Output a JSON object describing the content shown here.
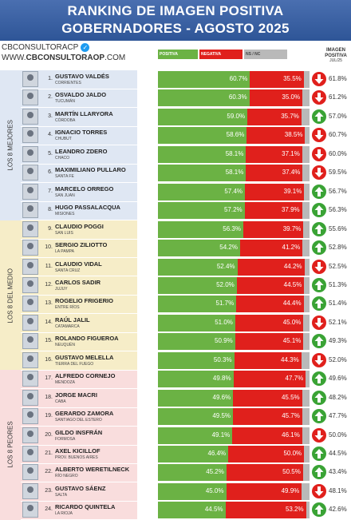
{
  "header": {
    "line1": "RANKING DE IMAGEN POSITIVA",
    "line2": "GOBERNADORES - AGOSTO 2025"
  },
  "brand": {
    "handle": "CBCONSULTORACP",
    "check_icon": "verified-check-icon",
    "web_prefix": "WWW.",
    "web_main": "CBCONSULTORAOP",
    "web_suffix": ".COM"
  },
  "legend": {
    "positive": "POSITIVA",
    "negative": "NEGATIVA",
    "ns": "NS / NC"
  },
  "column_title": {
    "line1": "IMAGEN",
    "line2": "POSITIVA",
    "line3": "JUL/25"
  },
  "colors": {
    "positive": "#6bb244",
    "negative": "#e0201c",
    "ns": "#b9b9b9",
    "up": "#3aa335",
    "down": "#e0201c",
    "band_top": "#dfe7f3",
    "band_mid": "#f6edc8",
    "band_bot": "#f9dddd"
  },
  "groups": [
    {
      "label": "LOS 8 MEJORES",
      "color": "#dfe7f3"
    },
    {
      "label": "LOS 8 DEL MEDIO",
      "color": "#f6edc8"
    },
    {
      "label": "LOS 8 PEORES",
      "color": "#f9dddd"
    }
  ],
  "chart_data": {
    "type": "bar",
    "stacked": true,
    "series_names": [
      "POSITIVA",
      "NEGATIVA",
      "NS / NC"
    ],
    "rows": [
      {
        "rank": "1.",
        "name": "GUSTAVO VALDÉS",
        "province": "CORRIENTES",
        "positive": 60.7,
        "negative": 35.5,
        "positive_label": "60.7%",
        "negative_label": "35.5%",
        "trend": "down",
        "previous": "61.8%"
      },
      {
        "rank": "2.",
        "name": "OSVALDO JALDO",
        "province": "TUCUMÁN",
        "positive": 60.3,
        "negative": 35.0,
        "positive_label": "60.3%",
        "negative_label": "35.0%",
        "trend": "down",
        "previous": "61.2%"
      },
      {
        "rank": "3.",
        "name": "MARTÍN LLARYORA",
        "province": "CÓRDOBA",
        "positive": 59.0,
        "negative": 35.7,
        "positive_label": "59.0%",
        "negative_label": "35.7%",
        "trend": "up",
        "previous": "57.0%"
      },
      {
        "rank": "4.",
        "name": "IGNACIO TORRES",
        "province": "CHUBUT",
        "positive": 58.6,
        "negative": 38.5,
        "positive_label": "58.6%",
        "negative_label": "38.5%",
        "trend": "down",
        "previous": "60.7%"
      },
      {
        "rank": "5.",
        "name": "LEANDRO ZDERO",
        "province": "CHACO",
        "positive": 58.1,
        "negative": 37.1,
        "positive_label": "58.1%",
        "negative_label": "37.1%",
        "trend": "down",
        "previous": "60.0%"
      },
      {
        "rank": "6.",
        "name": "MAXIMILIANO PULLARO",
        "province": "SANTA FE",
        "positive": 58.1,
        "negative": 37.4,
        "positive_label": "58.1%",
        "negative_label": "37.4%",
        "trend": "down",
        "previous": "59.5%"
      },
      {
        "rank": "7.",
        "name": "MARCELO ORREGO",
        "province": "SAN JUAN",
        "positive": 57.4,
        "negative": 39.1,
        "positive_label": "57.4%",
        "negative_label": "39.1%",
        "trend": "up",
        "previous": "56.7%"
      },
      {
        "rank": "8.",
        "name": "HUGO PASSALACQUA",
        "province": "MISIONES",
        "positive": 57.2,
        "negative": 37.9,
        "positive_label": "57.2%",
        "negative_label": "37.9%",
        "trend": "up",
        "previous": "56.3%"
      },
      {
        "rank": "9.",
        "name": "CLAUDIO POGGI",
        "province": "SAN LUIS",
        "positive": 56.3,
        "negative": 39.7,
        "positive_label": "56.3%",
        "negative_label": "39.7%",
        "trend": "up",
        "previous": "55.6%"
      },
      {
        "rank": "10.",
        "name": "SERGIO ZILIOTTO",
        "province": "LA PAMPA",
        "positive": 54.2,
        "negative": 41.2,
        "positive_label": "54.2%",
        "negative_label": "41.2%",
        "trend": "up",
        "previous": "52.8%"
      },
      {
        "rank": "11.",
        "name": "CLAUDIO VIDAL",
        "province": "SANTA CRUZ",
        "positive": 52.4,
        "negative": 44.2,
        "positive_label": "52.4%",
        "negative_label": "44.2%",
        "trend": "down",
        "previous": "52.5%"
      },
      {
        "rank": "12.",
        "name": "CARLOS SADIR",
        "province": "JUJUY",
        "positive": 52.0,
        "negative": 44.5,
        "positive_label": "52.0%",
        "negative_label": "44.5%",
        "trend": "up",
        "previous": "51.3%"
      },
      {
        "rank": "13.",
        "name": "ROGELIO FRIGERIO",
        "province": "ENTRE RÍOS",
        "positive": 51.7,
        "negative": 44.4,
        "positive_label": "51.7%",
        "negative_label": "44.4%",
        "trend": "up",
        "previous": "51.4%"
      },
      {
        "rank": "14.",
        "name": "RAÚL JALIL",
        "province": "CATAMARCA",
        "positive": 51.0,
        "negative": 45.0,
        "positive_label": "51.0%",
        "negative_label": "45.0%",
        "trend": "down",
        "previous": "52.1%"
      },
      {
        "rank": "15.",
        "name": "ROLANDO FIGUEROA",
        "province": "NEUQUÉN",
        "positive": 50.9,
        "negative": 45.1,
        "positive_label": "50.9%",
        "negative_label": "45.1%",
        "trend": "up",
        "previous": "49.3%"
      },
      {
        "rank": "16.",
        "name": "GUSTAVO MELELLA",
        "province": "TIERRA DEL FUEGO",
        "positive": 50.3,
        "negative": 44.3,
        "positive_label": "50.3%",
        "negative_label": "44.3%",
        "trend": "down",
        "previous": "52.0%"
      },
      {
        "rank": "17.",
        "name": "ALFREDO CORNEJO",
        "province": "MENDOZA",
        "positive": 49.8,
        "negative": 47.7,
        "positive_label": "49.8%",
        "negative_label": "47.7%",
        "trend": "up",
        "previous": "49.6%"
      },
      {
        "rank": "18.",
        "name": "JORGE MACRI",
        "province": "CABA",
        "positive": 49.6,
        "negative": 45.5,
        "positive_label": "49.6%",
        "negative_label": "45.5%",
        "trend": "up",
        "previous": "48.2%"
      },
      {
        "rank": "19.",
        "name": "GERARDO ZAMORA",
        "province": "SANTIAGO DEL ESTERO",
        "positive": 49.5,
        "negative": 45.7,
        "positive_label": "49.5%",
        "negative_label": "45.7%",
        "trend": "up",
        "previous": "47.7%"
      },
      {
        "rank": "20.",
        "name": "GILDO INSFRÁN",
        "province": "FORMOSA",
        "positive": 49.1,
        "negative": 46.1,
        "positive_label": "49.1%",
        "negative_label": "46.1%",
        "trend": "down",
        "previous": "50.0%"
      },
      {
        "rank": "21.",
        "name": "AXEL KICILLOF",
        "province": "PROV. BUENOS AIRES",
        "positive": 46.4,
        "negative": 50.0,
        "positive_label": "46.4%",
        "negative_label": "50.0%",
        "trend": "up",
        "previous": "44.5%"
      },
      {
        "rank": "22.",
        "name": "ALBERTO WERETILNECK",
        "province": "RÍO NEGRO",
        "positive": 45.2,
        "negative": 50.5,
        "positive_label": "45.2%",
        "negative_label": "50.5%",
        "trend": "up",
        "previous": "43.4%"
      },
      {
        "rank": "23.",
        "name": "GUSTAVO SÁENZ",
        "province": "SALTA",
        "positive": 45.0,
        "negative": 49.9,
        "positive_label": "45.0%",
        "negative_label": "49.9%",
        "trend": "down",
        "previous": "48.1%"
      },
      {
        "rank": "24.",
        "name": "RICARDO QUINTELA",
        "province": "LA RIOJA",
        "positive": 44.5,
        "negative": 53.2,
        "positive_label": "44.5%",
        "negative_label": "53.2%",
        "trend": "up",
        "previous": "42.6%"
      }
    ]
  }
}
